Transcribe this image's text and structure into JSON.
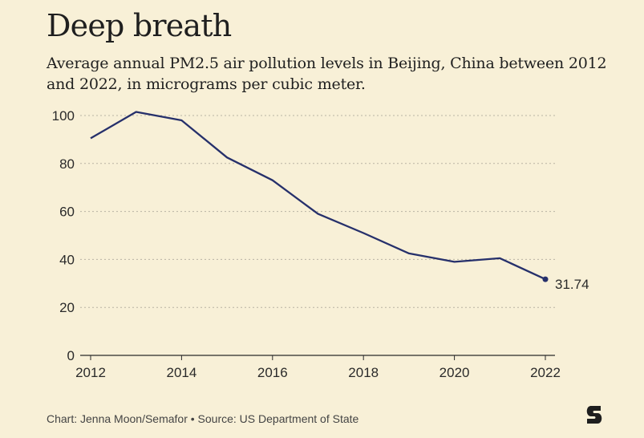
{
  "header": {
    "title": "Deep breath",
    "subtitle": "Average annual PM2.5 air pollution levels in Beijing, China between 2012 and 2022, in micrograms per cubic meter."
  },
  "footer": {
    "source": "Chart: Jenna Moon/Semafor • Source: US Department of State"
  },
  "colors": {
    "background": "#f8f0d7",
    "line": "#26306b",
    "grid": "#b8b3a4",
    "axis": "#2a2a2a"
  },
  "chart_data": {
    "type": "line",
    "title": "Deep breath",
    "subtitle": "Average annual PM2.5 air pollution levels in Beijing, China between 2012 and 2022, in micrograms per cubic meter.",
    "xlabel": "",
    "ylabel": "",
    "x": [
      2012,
      2013,
      2014,
      2015,
      2016,
      2017,
      2018,
      2019,
      2020,
      2021,
      2022
    ],
    "values": [
      90.5,
      101.5,
      98,
      82.5,
      73,
      59,
      51,
      42.5,
      39,
      40.5,
      31.74
    ],
    "x_ticks": [
      "2012",
      "2014",
      "2016",
      "2018",
      "2020",
      "2022"
    ],
    "y_ticks": [
      "0",
      "20",
      "40",
      "60",
      "80",
      "100"
    ],
    "xlim": [
      2012,
      2022
    ],
    "ylim": [
      0,
      100
    ],
    "grid": "horizontal dotted",
    "legend": "none",
    "end_label": "31.74"
  }
}
